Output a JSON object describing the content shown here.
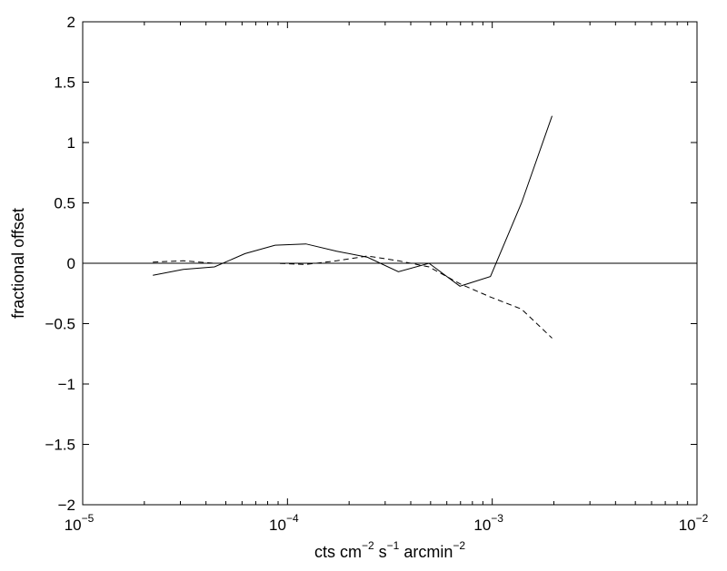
{
  "chart_data": {
    "type": "line",
    "title": "",
    "xlabel": "cts cm⁻² s⁻¹ arcmin⁻²",
    "xlabel_parts": [
      {
        "text": "cts cm",
        "sup": "−2"
      },
      {
        "text": " s",
        "sup": "−1"
      },
      {
        "text": " arcmin",
        "sup": "−2"
      }
    ],
    "ylabel": "fractional offset",
    "xscale": "log",
    "xlim": [
      1e-05,
      0.01
    ],
    "ylim": [
      -2,
      2
    ],
    "grid": false,
    "x_ticks": [
      {
        "value": 1e-05,
        "base": "10",
        "exp": "−5"
      },
      {
        "value": 0.0001,
        "base": "10",
        "exp": "−4"
      },
      {
        "value": 0.001,
        "base": "10",
        "exp": "−3"
      },
      {
        "value": 0.01,
        "base": "10",
        "exp": "−2"
      }
    ],
    "y_ticks": [
      {
        "value": 2,
        "label": "2"
      },
      {
        "value": 1.5,
        "label": "1.5"
      },
      {
        "value": 1,
        "label": "1"
      },
      {
        "value": 0.5,
        "label": "0.5"
      },
      {
        "value": 0,
        "label": "0"
      },
      {
        "value": -0.5,
        "label": "−0.5"
      },
      {
        "value": -1,
        "label": "−1"
      },
      {
        "value": -1.5,
        "label": "−1.5"
      },
      {
        "value": -2,
        "label": "−2"
      }
    ],
    "reference_line": {
      "y": 0,
      "style": "solid"
    },
    "series": [
      {
        "style": "solid",
        "x": [
          2.2e-05,
          3.1e-05,
          4.4e-05,
          6.2e-05,
          8.7e-05,
          0.000123,
          0.000174,
          0.000246,
          0.000348,
          0.000491,
          0.000695,
          0.00098,
          0.00139,
          0.00196
        ],
        "y": [
          -0.1,
          -0.05,
          -0.03,
          0.08,
          0.15,
          0.16,
          0.1,
          0.05,
          -0.07,
          0.0,
          -0.19,
          -0.11,
          0.5,
          1.22
        ]
      },
      {
        "style": "dashed",
        "x": [
          2.2e-05,
          3.1e-05,
          4.4e-05,
          6.2e-05,
          8.7e-05,
          0.000123,
          0.000174,
          0.000246,
          0.000348,
          0.000491,
          0.000695,
          0.00098,
          0.00139,
          0.00196
        ],
        "y": [
          0.01,
          0.02,
          0.0,
          0.0,
          0.0,
          -0.01,
          0.02,
          0.06,
          0.02,
          -0.03,
          -0.17,
          -0.28,
          -0.38,
          -0.62
        ]
      }
    ]
  }
}
